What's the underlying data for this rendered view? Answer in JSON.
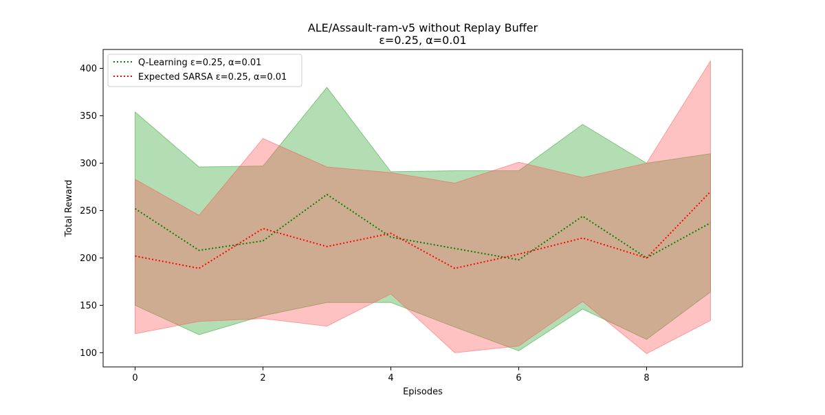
{
  "chart_data": {
    "type": "line",
    "title": "ALE/Assault-ram-v5 without Replay Buffer",
    "subtitle": "ε=0.25, α=0.01",
    "xlabel": "Episodes",
    "ylabel": "Total Reward",
    "xlim": [
      -0.5,
      9.5
    ],
    "ylim": [
      85,
      420
    ],
    "xticks": [
      0,
      2,
      4,
      6,
      8
    ],
    "yticks": [
      100,
      150,
      200,
      250,
      300,
      350,
      400
    ],
    "grid": false,
    "legend_position": "top-left",
    "x": [
      0,
      1,
      2,
      3,
      4,
      5,
      6,
      7,
      8,
      9
    ],
    "series": [
      {
        "name": "Q-Learning ε=0.25, α=0.01",
        "color": "#008000",
        "band_color": "#2ca02c",
        "mean": [
          252,
          208,
          218,
          267,
          222,
          210,
          198,
          244,
          200,
          237
        ],
        "upper": [
          354,
          296,
          297,
          380,
          291,
          292,
          292,
          341,
          300,
          310
        ],
        "lower": [
          150,
          119,
          139,
          153,
          153,
          127,
          102,
          146,
          114,
          164
        ]
      },
      {
        "name": "Expected SARSA ε=0.25, α=0.01",
        "color": "#ff0000",
        "band_color": "#ff5555",
        "mean": [
          202,
          189,
          231,
          212,
          226,
          189,
          204,
          221,
          200,
          270
        ],
        "upper": [
          283,
          245,
          326,
          296,
          290,
          279,
          301,
          285,
          300,
          408
        ],
        "lower": [
          120,
          133,
          136,
          128,
          162,
          100,
          107,
          154,
          99,
          134
        ]
      }
    ]
  }
}
